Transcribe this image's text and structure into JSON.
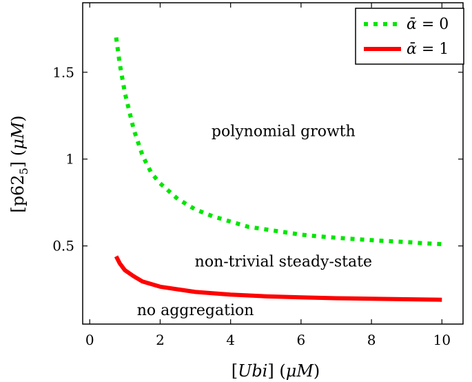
{
  "chart_data": {
    "type": "line",
    "xlabel_parts": [
      "[",
      "Ubi",
      "] (",
      "μM",
      ")"
    ],
    "ylabel_parts": [
      "[p62",
      "5",
      "] (",
      "μM",
      ")"
    ],
    "xlim": [
      -0.2,
      10.6
    ],
    "ylim": [
      0.05,
      1.9
    ],
    "xticks": [
      0,
      2,
      4,
      6,
      8,
      10
    ],
    "xtick_labels": [
      "0",
      "2",
      "4",
      "6",
      "8",
      "10"
    ],
    "yticks": [
      0.5,
      1,
      1.5
    ],
    "ytick_labels": [
      "0.5",
      "1",
      "1.5"
    ],
    "grid": false,
    "legend_position": "top-right",
    "series": [
      {
        "legend_parts": [
          "ᾱ",
          " = 0"
        ],
        "color": "#00e600",
        "style": "dotted",
        "x": [
          0.75,
          0.85,
          1.0,
          1.25,
          1.5,
          1.75,
          2.0,
          2.5,
          3.0,
          3.5,
          4.0,
          4.5,
          5.0,
          5.5,
          6.0,
          6.5,
          7.0,
          7.5,
          8.0,
          8.5,
          9.0,
          9.5,
          10.0
        ],
        "y": [
          1.7,
          1.55,
          1.38,
          1.17,
          1.02,
          0.92,
          0.86,
          0.77,
          0.71,
          0.67,
          0.64,
          0.61,
          0.595,
          0.58,
          0.565,
          0.555,
          0.547,
          0.54,
          0.533,
          0.527,
          0.522,
          0.515,
          0.51
        ]
      },
      {
        "legend_parts": [
          "ᾱ",
          " = 1"
        ],
        "color": "#ff0000",
        "style": "solid",
        "x": [
          0.75,
          0.85,
          1.0,
          1.25,
          1.5,
          2.0,
          2.5,
          3.0,
          4.0,
          5.0,
          6.0,
          7.0,
          8.0,
          9.0,
          10.0
        ],
        "y": [
          0.44,
          0.4,
          0.36,
          0.325,
          0.295,
          0.265,
          0.25,
          0.235,
          0.22,
          0.21,
          0.204,
          0.199,
          0.196,
          0.193,
          0.19
        ]
      }
    ],
    "annotations": [
      {
        "text": "polynomial growth",
        "x": 5.5,
        "y": 1.16
      },
      {
        "text": "non-trivial steady-state",
        "x": 5.5,
        "y": 0.41
      },
      {
        "text": "no aggregation",
        "x": 3.0,
        "y": 0.13
      }
    ]
  }
}
